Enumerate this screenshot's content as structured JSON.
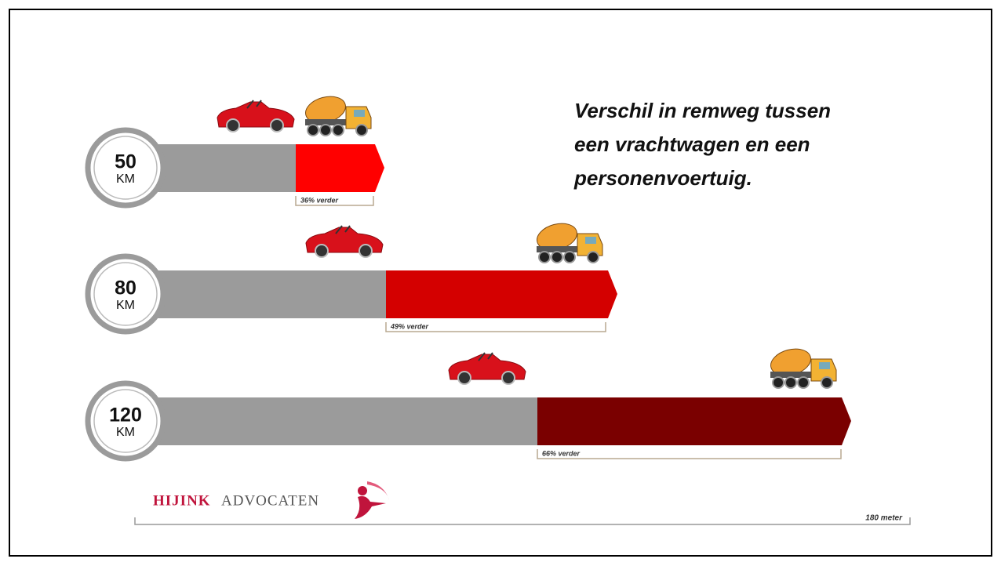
{
  "title_lines": [
    "Verschil in remweg tussen",
    "een vrachtwagen en een",
    "personenvoertuig."
  ],
  "rows": [
    {
      "speed": "50",
      "unit": "KM",
      "difference": "36% verder"
    },
    {
      "speed": "80",
      "unit": "KM",
      "difference": "49% verder"
    },
    {
      "speed": "120",
      "unit": "KM",
      "difference": "66% verder"
    }
  ],
  "scale_label": "180 meter",
  "logo": {
    "name": "HIJINK",
    "suffix": "ADVOCATEN"
  }
}
